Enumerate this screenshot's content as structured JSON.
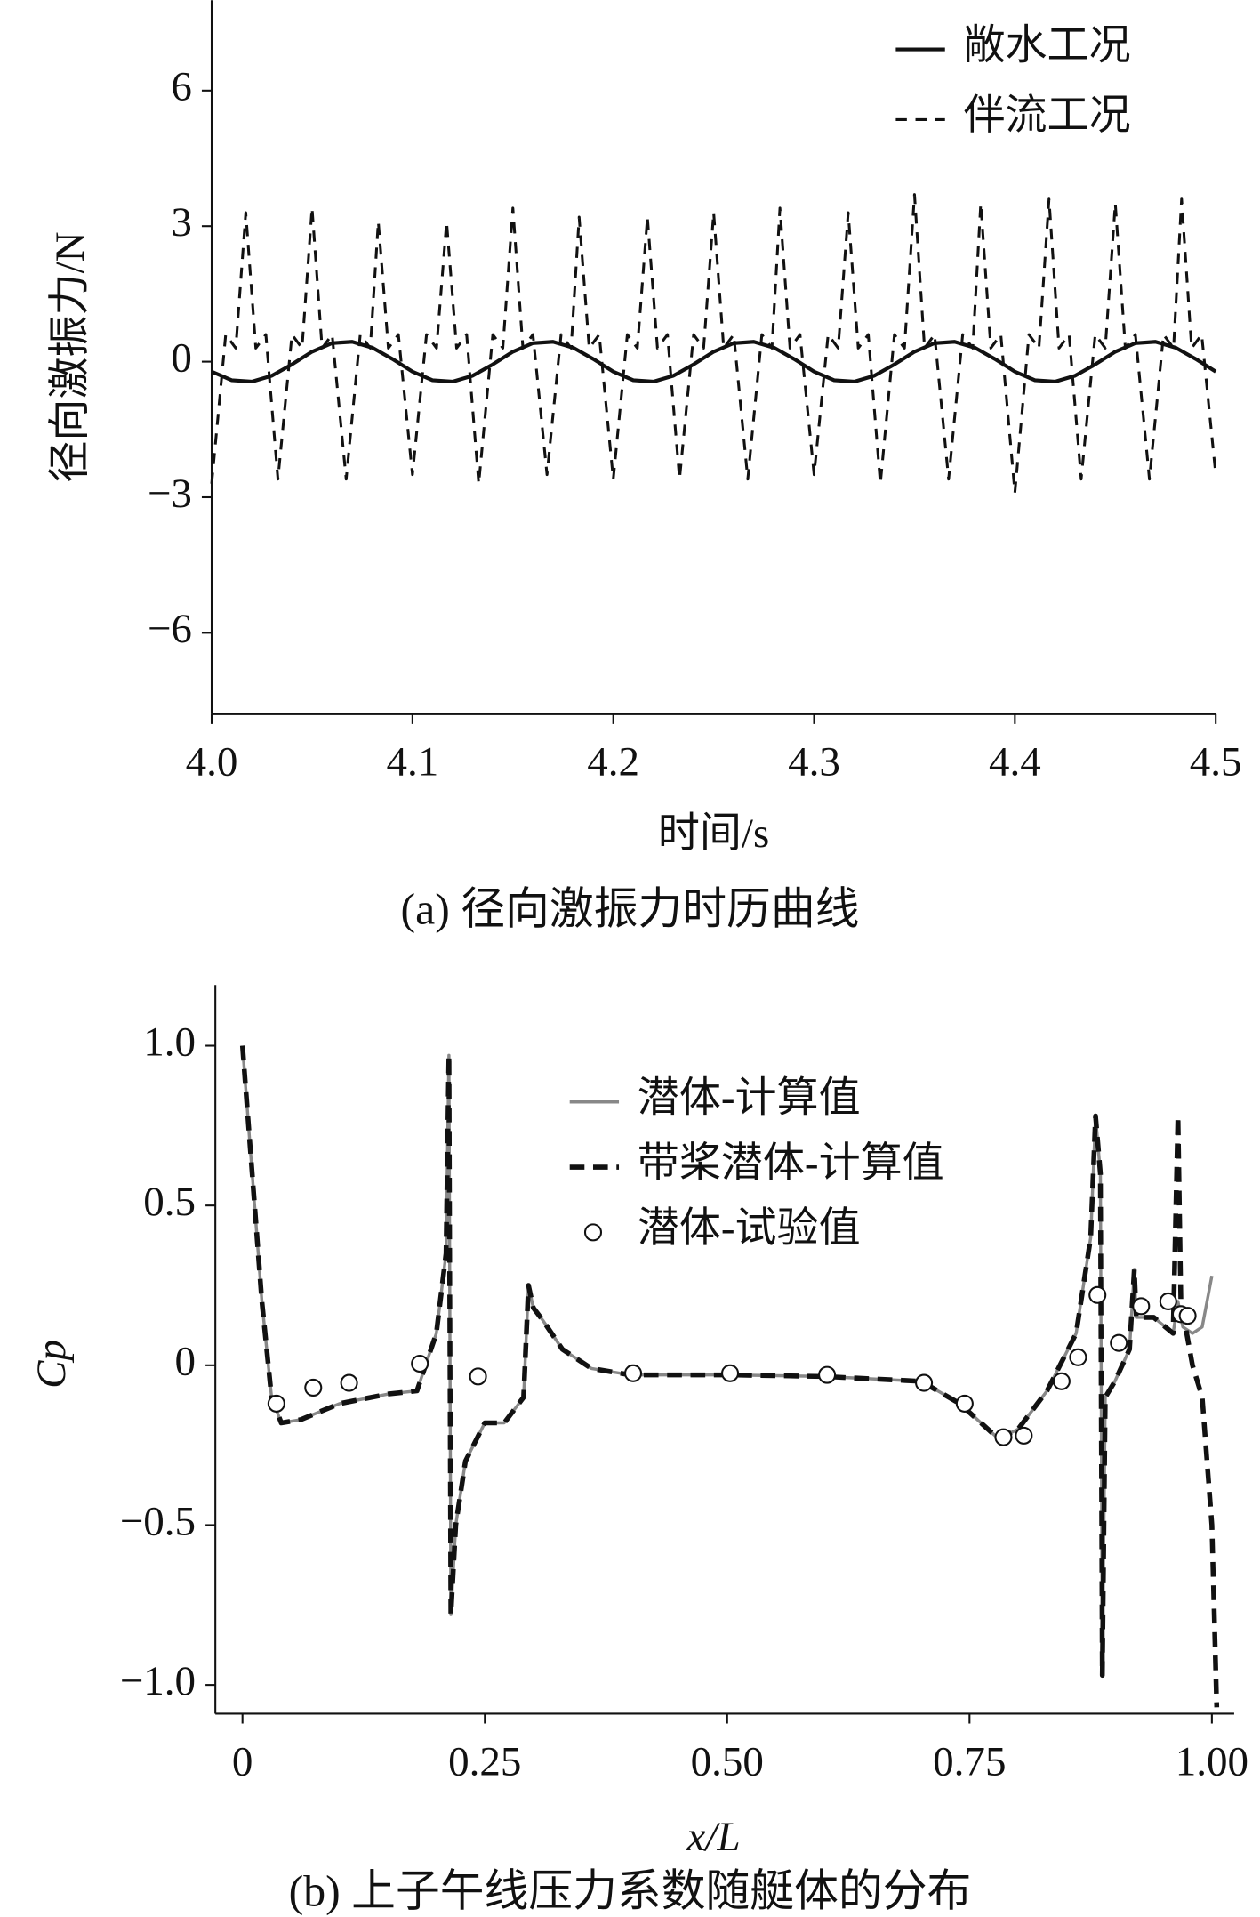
{
  "chart_data": [
    {
      "type": "line",
      "title": "(a) 径向激振力时历曲线",
      "xlabel": "时间/s",
      "ylabel": "径向激振力/N",
      "xlim": [
        4.0,
        4.5
      ],
      "ylim": [
        -7.8,
        8
      ],
      "xticks": [
        {
          "value": 4.0,
          "label": "4.0"
        },
        4.1,
        4.2,
        4.3,
        4.4,
        4.5
      ],
      "yticks": [
        {
          "value": -6,
          "label": "−6"
        },
        {
          "value": -3,
          "label": "−3"
        },
        0,
        3,
        6
      ],
      "legend": "upper right",
      "series": [
        {
          "name": "敞水工况",
          "color": "#111111",
          "line_style": "solid",
          "x": [
            4.0,
            4.01,
            4.02,
            4.03,
            4.04,
            4.05,
            4.06,
            4.07,
            4.08,
            4.09,
            4.1,
            4.11,
            4.12,
            4.13,
            4.14,
            4.15,
            4.16,
            4.17,
            4.18,
            4.19,
            4.2,
            4.21,
            4.22,
            4.23,
            4.24,
            4.25,
            4.26,
            4.27,
            4.28,
            4.29,
            4.3,
            4.31,
            4.32,
            4.33,
            4.34,
            4.35,
            4.36,
            4.37,
            4.38,
            4.39,
            4.4,
            4.41,
            4.42,
            4.43,
            4.44,
            4.45,
            4.46,
            4.47,
            4.48,
            4.49,
            4.5
          ],
          "values": [
            -0.22,
            -0.41,
            -0.44,
            -0.31,
            -0.06,
            0.22,
            0.41,
            0.44,
            0.31,
            0.06,
            -0.22,
            -0.41,
            -0.44,
            -0.31,
            -0.06,
            0.22,
            0.41,
            0.44,
            0.31,
            0.06,
            -0.22,
            -0.41,
            -0.44,
            -0.31,
            -0.06,
            0.22,
            0.41,
            0.44,
            0.31,
            0.06,
            -0.22,
            -0.41,
            -0.44,
            -0.31,
            -0.06,
            0.22,
            0.41,
            0.44,
            0.31,
            0.06,
            -0.22,
            -0.41,
            -0.44,
            -0.31,
            -0.06,
            0.22,
            0.41,
            0.44,
            0.31,
            0.06,
            -0.22
          ]
        },
        {
          "name": "伴流工况",
          "color": "#111111",
          "line_style": "dashed",
          "x": [
            4.0,
            4.007,
            4.012,
            4.017,
            4.022,
            4.027,
            4.033,
            4.04,
            4.045,
            4.05,
            4.055,
            4.06,
            4.067,
            4.074,
            4.079,
            4.083,
            4.088,
            4.093,
            4.1,
            4.107,
            4.112,
            4.117,
            4.122,
            4.127,
            4.133,
            4.14,
            4.145,
            4.15,
            4.155,
            4.16,
            4.167,
            4.174,
            4.179,
            4.183,
            4.188,
            4.193,
            4.2,
            4.207,
            4.212,
            4.217,
            4.222,
            4.227,
            4.233,
            4.24,
            4.245,
            4.25,
            4.255,
            4.26,
            4.267,
            4.274,
            4.279,
            4.283,
            4.288,
            4.293,
            4.3,
            4.307,
            4.312,
            4.317,
            4.322,
            4.327,
            4.333,
            4.34,
            4.345,
            4.35,
            4.355,
            4.36,
            4.367,
            4.374,
            4.379,
            4.383,
            4.388,
            4.393,
            4.4,
            4.407,
            4.412,
            4.417,
            4.422,
            4.427,
            4.433,
            4.44,
            4.445,
            4.45,
            4.455,
            4.46,
            4.467,
            4.474,
            4.479,
            4.483,
            4.488,
            4.493,
            4.5
          ],
          "values": [
            -2.7,
            0.6,
            0.3,
            3.3,
            0.3,
            0.6,
            -2.6,
            0.6,
            0.3,
            3.4,
            0.3,
            0.6,
            -2.6,
            0.6,
            0.3,
            3.1,
            0.3,
            0.6,
            -2.5,
            0.6,
            0.3,
            3.1,
            0.3,
            0.6,
            -2.7,
            0.6,
            0.3,
            3.4,
            0.3,
            0.6,
            -2.5,
            0.6,
            0.3,
            3.2,
            0.3,
            0.6,
            -2.6,
            0.6,
            0.3,
            3.2,
            0.3,
            0.6,
            -2.6,
            0.6,
            0.3,
            3.3,
            0.3,
            0.6,
            -2.6,
            0.6,
            0.3,
            3.4,
            0.3,
            0.6,
            -2.5,
            0.6,
            0.3,
            3.3,
            0.3,
            0.6,
            -2.7,
            0.6,
            0.3,
            3.7,
            0.3,
            0.6,
            -2.6,
            0.6,
            0.3,
            3.5,
            0.3,
            0.6,
            -2.9,
            0.6,
            0.3,
            3.6,
            0.3,
            0.6,
            -2.6,
            0.6,
            0.3,
            3.5,
            0.3,
            0.6,
            -2.6,
            0.6,
            0.3,
            3.6,
            0.3,
            0.6,
            -2.5
          ]
        }
      ]
    },
    {
      "type": "line",
      "title": "(b) 上子午线压力系数随艇体的分布",
      "xlabel": "x/L",
      "ylabel": "Cp",
      "xlim": [
        -0.028,
        1.023
      ],
      "ylim": [
        -1.09,
        1.19
      ],
      "xticks": [
        0,
        0.25,
        {
          "value": 0.5,
          "label": "0.50"
        },
        0.75,
        {
          "value": 1.0,
          "label": "1.00"
        }
      ],
      "yticks": [
        {
          "value": -1.0,
          "label": "−1.0"
        },
        {
          "value": -0.5,
          "label": "−0.5"
        },
        0,
        0.5,
        {
          "value": 1.0,
          "label": "1.0"
        }
      ],
      "legend": "upper center",
      "series": [
        {
          "name": "潜体-计算值",
          "color": "#888888",
          "line_style": "solid",
          "x": [
            0.0,
            0.01,
            0.02,
            0.03,
            0.04,
            0.06,
            0.1,
            0.15,
            0.18,
            0.2,
            0.21,
            0.213,
            0.215,
            0.22,
            0.23,
            0.25,
            0.27,
            0.29,
            0.295,
            0.3,
            0.31,
            0.33,
            0.36,
            0.4,
            0.5,
            0.6,
            0.7,
            0.74,
            0.78,
            0.8,
            0.83,
            0.86,
            0.875,
            0.88,
            0.885,
            0.887,
            0.89,
            0.9,
            0.915,
            0.92,
            0.922,
            0.94,
            0.96,
            0.965,
            0.97,
            0.98,
            0.99,
            1.0
          ],
          "values": [
            1.0,
            0.6,
            0.2,
            -0.1,
            -0.18,
            -0.17,
            -0.12,
            -0.09,
            -0.08,
            0.1,
            0.35,
            0.97,
            -0.78,
            -0.5,
            -0.3,
            -0.18,
            -0.18,
            -0.1,
            0.25,
            0.18,
            0.14,
            0.05,
            -0.01,
            -0.03,
            -0.03,
            -0.035,
            -0.05,
            -0.12,
            -0.23,
            -0.2,
            -0.08,
            0.1,
            0.4,
            0.78,
            0.6,
            -0.97,
            -0.1,
            -0.05,
            0.05,
            0.3,
            0.15,
            0.15,
            0.1,
            0.2,
            0.12,
            0.1,
            0.12,
            0.28
          ]
        },
        {
          "name": "带桨潜体-计算值",
          "color": "#111111",
          "line_style": "dashed",
          "x": [
            0.0,
            0.01,
            0.02,
            0.03,
            0.04,
            0.06,
            0.1,
            0.15,
            0.18,
            0.2,
            0.21,
            0.213,
            0.215,
            0.22,
            0.23,
            0.25,
            0.27,
            0.29,
            0.295,
            0.3,
            0.31,
            0.33,
            0.36,
            0.4,
            0.5,
            0.6,
            0.7,
            0.74,
            0.78,
            0.8,
            0.83,
            0.86,
            0.875,
            0.88,
            0.885,
            0.887,
            0.89,
            0.9,
            0.915,
            0.92,
            0.922,
            0.94,
            0.96,
            0.965,
            0.968,
            0.98,
            0.99,
            1.0,
            1.005
          ],
          "values": [
            1.0,
            0.6,
            0.2,
            -0.1,
            -0.18,
            -0.17,
            -0.12,
            -0.09,
            -0.08,
            0.1,
            0.35,
            0.97,
            -0.78,
            -0.5,
            -0.3,
            -0.18,
            -0.18,
            -0.1,
            0.25,
            0.18,
            0.14,
            0.05,
            -0.01,
            -0.03,
            -0.03,
            -0.035,
            -0.05,
            -0.12,
            -0.23,
            -0.2,
            -0.08,
            0.1,
            0.4,
            0.78,
            0.6,
            -0.97,
            -0.1,
            -0.05,
            0.05,
            0.3,
            0.15,
            0.15,
            0.1,
            0.78,
            0.2,
            0.0,
            -0.1,
            -0.5,
            -1.07
          ]
        },
        {
          "name": "潜体-试验值",
          "color": "#111111",
          "marker": "circle",
          "x": [
            0.035,
            0.073,
            0.11,
            0.183,
            0.243,
            0.403,
            0.503,
            0.603,
            0.703,
            0.745,
            0.785,
            0.806,
            0.845,
            0.862,
            0.882,
            0.904,
            0.927,
            0.955,
            0.968,
            0.975
          ],
          "values": [
            -0.12,
            -0.07,
            -0.055,
            0.005,
            -0.035,
            -0.025,
            -0.025,
            -0.03,
            -0.055,
            -0.12,
            -0.225,
            -0.22,
            -0.05,
            0.025,
            0.22,
            0.07,
            0.185,
            0.2,
            0.16,
            0.155
          ]
        }
      ]
    }
  ]
}
